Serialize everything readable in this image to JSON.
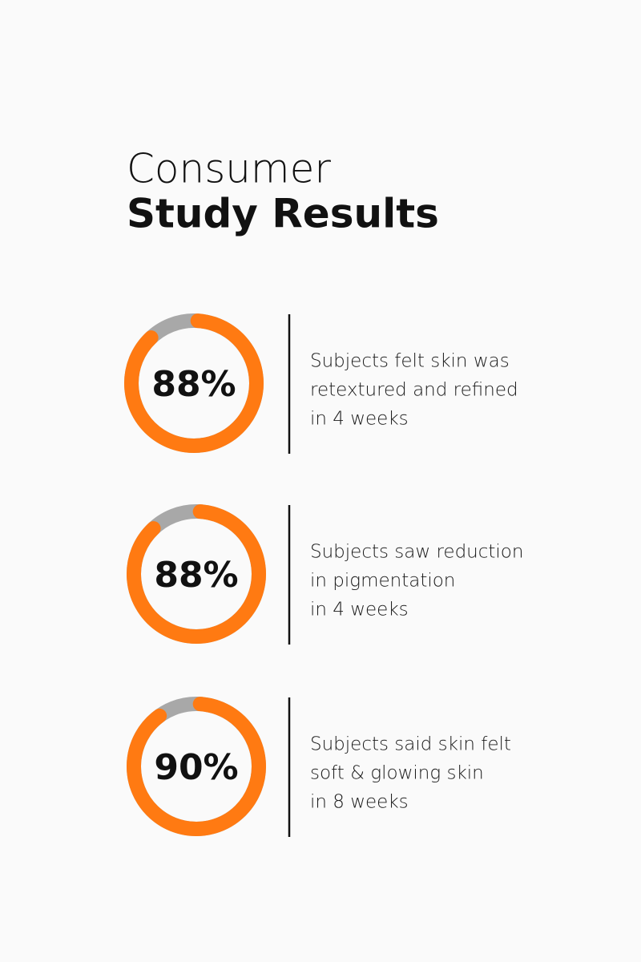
{
  "header": {
    "title_line1": "Consumer",
    "title_line2": "Study Results"
  },
  "chart_data": [
    {
      "type": "donut",
      "values": [
        88
      ],
      "value_labels": [
        "88%"
      ],
      "ylim": [
        0,
        100
      ],
      "color": "#ff7a12",
      "track_color": "#a8a8a8",
      "description": [
        "Subjects felt skin was",
        "retextured and refined",
        "in 4 weeks"
      ]
    },
    {
      "type": "donut",
      "values": [
        88
      ],
      "value_labels": [
        "88%"
      ],
      "ylim": [
        0,
        100
      ],
      "color": "#ff7a12",
      "track_color": "#a8a8a8",
      "description": [
        "Subjects saw reduction",
        "in pigmentation",
        "in 4 weeks"
      ]
    },
    {
      "type": "donut",
      "values": [
        90
      ],
      "value_labels": [
        "90%"
      ],
      "ylim": [
        0,
        100
      ],
      "color": "#ff7a12",
      "track_color": "#a8a8a8",
      "description": [
        "Subjects said skin felt",
        "soft & glowing skin",
        "in 8 weeks"
      ]
    }
  ]
}
